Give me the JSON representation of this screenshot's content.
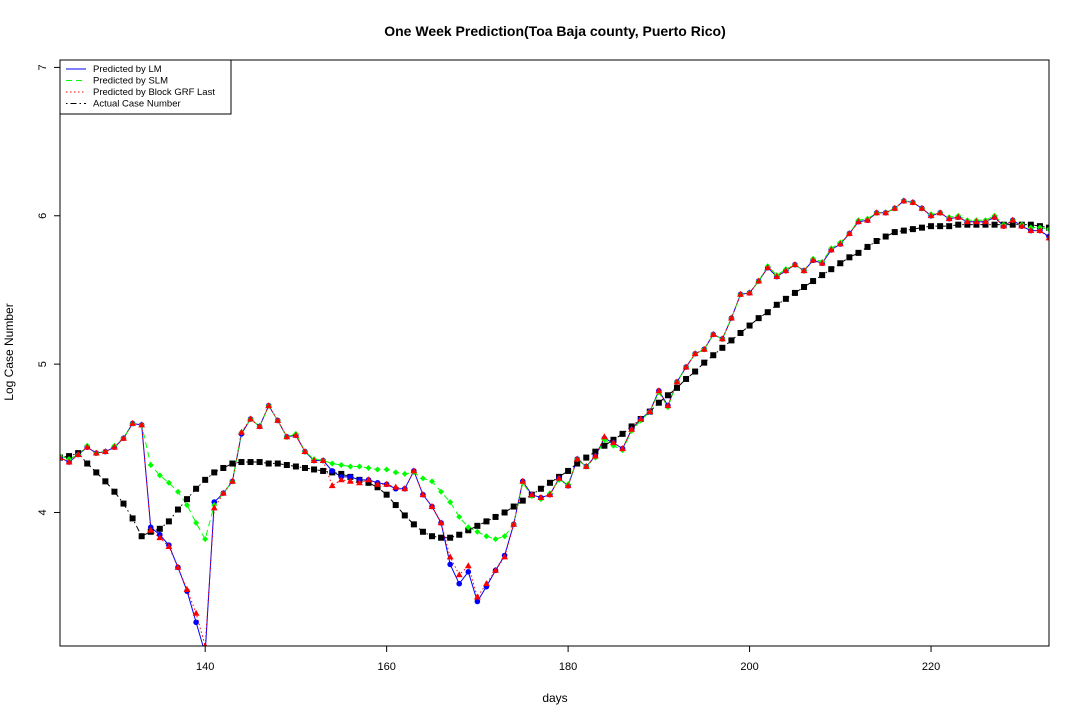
{
  "chart_data": {
    "type": "line",
    "title": "One Week Prediction(Toa Baja county, Puerto Rico)",
    "xlabel": "days",
    "ylabel": "Log Case Number",
    "xlim": [
      124,
      233
    ],
    "ylim": [
      3.1,
      7.05
    ],
    "x_ticks": [
      140,
      160,
      180,
      200,
      220
    ],
    "y_ticks": [
      4,
      5,
      6,
      7
    ],
    "grid": false,
    "legend_position": "top-left",
    "colors": {
      "lm": "#0000ff",
      "slm": "#00ff00",
      "grf": "#ff0000",
      "actual": "#000000"
    },
    "x_start": 124,
    "series": [
      {
        "name": "Predicted by LM",
        "color": "#0000ff",
        "line_style": "solid",
        "marker": "circle",
        "values": [
          4.37,
          4.34,
          4.39,
          4.44,
          4.4,
          4.41,
          4.44,
          4.5,
          4.6,
          4.59,
          3.9,
          3.85,
          3.78,
          3.63,
          3.47,
          3.26,
          3.05,
          4.07,
          4.13,
          4.21,
          4.53,
          4.63,
          4.58,
          4.72,
          4.62,
          4.51,
          4.52,
          4.41,
          4.35,
          4.35,
          4.28,
          4.24,
          4.24,
          4.22,
          4.22,
          4.2,
          4.19,
          4.16,
          4.16,
          4.28,
          4.12,
          4.04,
          3.93,
          3.65,
          3.52,
          3.6,
          3.4,
          3.5,
          3.61,
          3.71,
          3.92,
          4.21,
          4.12,
          4.1,
          4.12,
          4.23,
          4.18,
          4.36,
          4.31,
          4.38,
          4.5,
          4.47,
          4.43,
          4.56,
          4.63,
          4.68,
          4.82,
          4.72,
          4.88,
          4.98,
          5.07,
          5.1,
          5.2,
          5.17,
          5.31,
          5.47,
          5.48,
          5.56,
          5.65,
          5.59,
          5.63,
          5.67,
          5.63,
          5.7,
          5.68,
          5.77,
          5.81,
          5.88,
          5.96,
          5.97,
          6.02,
          6.02,
          6.05,
          6.1,
          6.09,
          6.05,
          6.0,
          6.02,
          5.98,
          5.99,
          5.96,
          5.96,
          5.96,
          5.99,
          5.93,
          5.97,
          5.93,
          5.9,
          5.9,
          5.86
        ]
      },
      {
        "name": "Predicted by SLM",
        "color": "#00ff00",
        "line_style": "dashed",
        "marker": "diamond",
        "values": [
          4.38,
          4.36,
          4.39,
          4.45,
          4.4,
          4.41,
          4.45,
          4.5,
          4.6,
          4.59,
          4.32,
          4.25,
          4.2,
          4.14,
          4.05,
          3.93,
          3.82,
          4.05,
          4.13,
          4.21,
          4.54,
          4.63,
          4.58,
          4.72,
          4.62,
          4.51,
          4.53,
          4.41,
          4.36,
          4.35,
          4.33,
          4.32,
          4.31,
          4.31,
          4.3,
          4.29,
          4.29,
          4.27,
          4.26,
          4.27,
          4.23,
          4.21,
          4.14,
          4.07,
          3.97,
          3.9,
          3.87,
          3.84,
          3.82,
          3.84,
          3.92,
          4.2,
          4.11,
          4.09,
          4.13,
          4.22,
          4.19,
          4.36,
          4.31,
          4.37,
          4.49,
          4.45,
          4.42,
          4.55,
          4.62,
          4.68,
          4.81,
          4.71,
          4.88,
          4.98,
          5.07,
          5.1,
          5.2,
          5.17,
          5.31,
          5.47,
          5.48,
          5.56,
          5.66,
          5.6,
          5.64,
          5.67,
          5.63,
          5.71,
          5.69,
          5.78,
          5.82,
          5.88,
          5.97,
          5.98,
          6.02,
          6.02,
          6.05,
          6.1,
          6.09,
          6.05,
          6.01,
          6.02,
          5.99,
          6.0,
          5.97,
          5.97,
          5.97,
          6.0,
          5.94,
          5.97,
          5.94,
          5.92,
          5.92,
          5.91
        ]
      },
      {
        "name": "Predicted by Block GRF Last",
        "color": "#ff0000",
        "line_style": "dotted",
        "marker": "triangle",
        "values": [
          4.37,
          4.34,
          4.39,
          4.44,
          4.4,
          4.41,
          4.44,
          4.5,
          4.6,
          4.59,
          3.88,
          3.83,
          3.77,
          3.63,
          3.48,
          3.32,
          3.1,
          4.03,
          4.13,
          4.21,
          4.54,
          4.63,
          4.58,
          4.72,
          4.62,
          4.51,
          4.52,
          4.41,
          4.35,
          4.35,
          4.18,
          4.22,
          4.21,
          4.2,
          4.22,
          4.19,
          4.19,
          4.17,
          4.16,
          4.28,
          4.12,
          4.04,
          3.93,
          3.7,
          3.58,
          3.64,
          3.43,
          3.52,
          3.61,
          3.7,
          3.92,
          4.21,
          4.12,
          4.1,
          4.12,
          4.23,
          4.18,
          4.36,
          4.31,
          4.38,
          4.51,
          4.47,
          4.43,
          4.56,
          4.63,
          4.68,
          4.82,
          4.72,
          4.88,
          4.98,
          5.07,
          5.1,
          5.2,
          5.17,
          5.31,
          5.47,
          5.48,
          5.56,
          5.65,
          5.59,
          5.63,
          5.67,
          5.63,
          5.7,
          5.68,
          5.77,
          5.81,
          5.88,
          5.96,
          5.97,
          6.02,
          6.02,
          6.05,
          6.1,
          6.09,
          6.05,
          6.0,
          6.02,
          5.98,
          5.99,
          5.96,
          5.96,
          5.96,
          5.99,
          5.93,
          5.97,
          5.93,
          5.9,
          5.9,
          5.85
        ]
      },
      {
        "name": "Actual Case Number",
        "color": "#000000",
        "line_style": "dotdash",
        "marker": "square",
        "values": [
          4.37,
          4.38,
          4.4,
          4.33,
          4.27,
          4.21,
          4.14,
          4.06,
          3.96,
          3.84,
          3.87,
          3.89,
          3.94,
          4.02,
          4.09,
          4.16,
          4.22,
          4.27,
          4.3,
          4.33,
          4.34,
          4.34,
          4.34,
          4.33,
          4.33,
          4.32,
          4.31,
          4.3,
          4.29,
          4.28,
          4.27,
          4.26,
          4.24,
          4.22,
          4.2,
          4.17,
          4.12,
          4.05,
          3.98,
          3.92,
          3.87,
          3.84,
          3.83,
          3.83,
          3.85,
          3.88,
          3.91,
          3.94,
          3.97,
          4.0,
          4.04,
          4.08,
          4.12,
          4.16,
          4.2,
          4.24,
          4.28,
          4.33,
          4.37,
          4.41,
          4.45,
          4.49,
          4.53,
          4.58,
          4.63,
          4.68,
          4.74,
          4.79,
          4.84,
          4.9,
          4.95,
          5.01,
          5.06,
          5.11,
          5.16,
          5.21,
          5.26,
          5.31,
          5.35,
          5.4,
          5.44,
          5.48,
          5.52,
          5.56,
          5.6,
          5.64,
          5.68,
          5.72,
          5.75,
          5.79,
          5.83,
          5.86,
          5.89,
          5.9,
          5.91,
          5.92,
          5.93,
          5.93,
          5.93,
          5.94,
          5.94,
          5.94,
          5.94,
          5.94,
          5.94,
          5.94,
          5.94,
          5.94,
          5.93,
          5.92
        ]
      }
    ]
  }
}
